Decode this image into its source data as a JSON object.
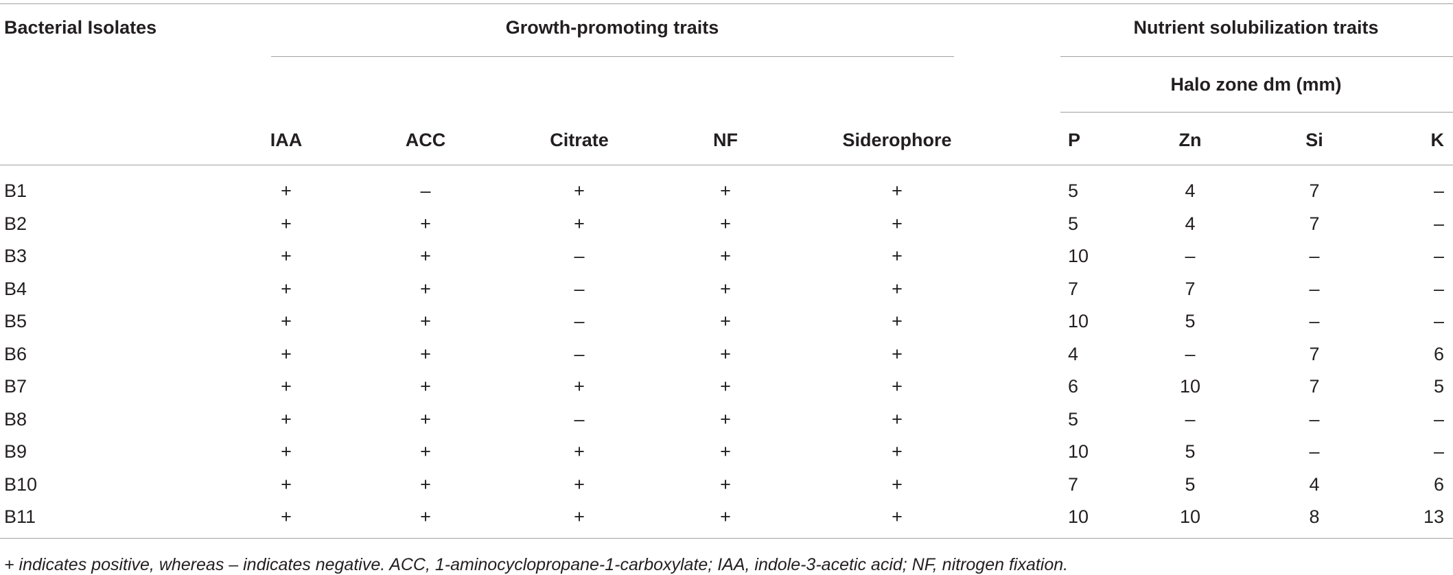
{
  "table": {
    "header": {
      "isolates": "Bacterial Isolates",
      "growth_group": "Growth-promoting traits",
      "nutrient_group": "Nutrient solubilization traits",
      "halo_zone": "Halo zone dm (mm)",
      "columns": [
        "IAA",
        "ACC",
        "Citrate",
        "NF",
        "Siderophore",
        "P",
        "Zn",
        "Si",
        "K"
      ]
    },
    "rows": [
      [
        "B1",
        "+",
        "–",
        "+",
        "+",
        "+",
        "5",
        "4",
        "7",
        "–"
      ],
      [
        "B2",
        "+",
        "+",
        "+",
        "+",
        "+",
        "5",
        "4",
        "7",
        "–"
      ],
      [
        "B3",
        "+",
        "+",
        "–",
        "+",
        "+",
        "10",
        "–",
        "–",
        "–"
      ],
      [
        "B4",
        "+",
        "+",
        "–",
        "+",
        "+",
        "7",
        "7",
        "–",
        "–"
      ],
      [
        "B5",
        "+",
        "+",
        "–",
        "+",
        "+",
        "10",
        "5",
        "–",
        "–"
      ],
      [
        "B6",
        "+",
        "+",
        "–",
        "+",
        "+",
        "4",
        "–",
        "7",
        "6"
      ],
      [
        "B7",
        "+",
        "+",
        "+",
        "+",
        "+",
        "6",
        "10",
        "7",
        "5"
      ],
      [
        "B8",
        "+",
        "+",
        "–",
        "+",
        "+",
        "5",
        "–",
        "–",
        "–"
      ],
      [
        "B9",
        "+",
        "+",
        "+",
        "+",
        "+",
        "10",
        "5",
        "–",
        "–"
      ],
      [
        "B10",
        "+",
        "+",
        "+",
        "+",
        "+",
        "7",
        "5",
        "4",
        "6"
      ],
      [
        "B11",
        "+",
        "+",
        "+",
        "+",
        "+",
        "10",
        "10",
        "8",
        "13"
      ]
    ],
    "footnote": "+ indicates positive, whereas – indicates negative. ACC, 1-aminocyclopropane-1-carboxylate; IAA, indole-3-acetic acid; NF, nitrogen fixation."
  }
}
